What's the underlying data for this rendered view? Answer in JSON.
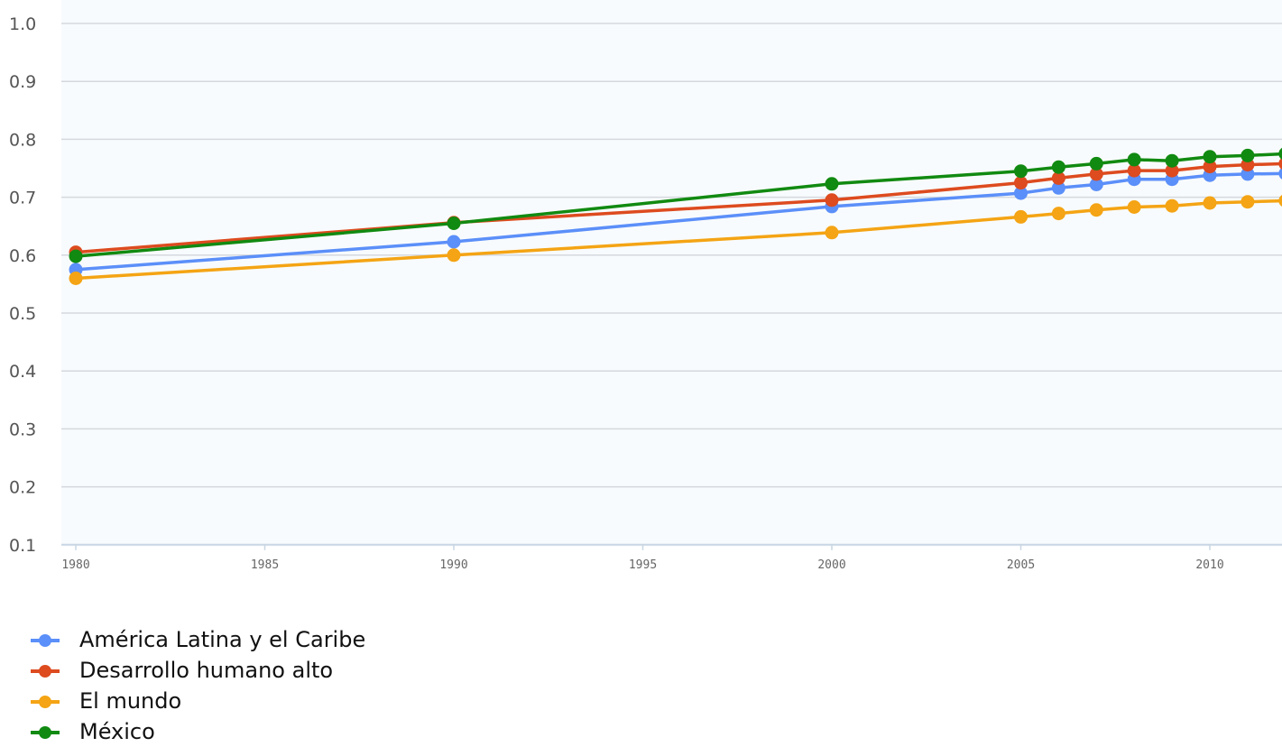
{
  "chart_data": {
    "type": "line",
    "x": [
      1980,
      1990,
      2000,
      2005,
      2006,
      2007,
      2008,
      2009,
      2010,
      2011,
      2012
    ],
    "x_ticks": [
      "1980",
      "1985",
      "1990",
      "1995",
      "2000",
      "2005",
      "2010"
    ],
    "y_ticks": [
      "1.0",
      "0.9",
      "0.8",
      "0.7",
      "0.6",
      "0.5",
      "0.4",
      "0.3",
      "0.2",
      "0.1"
    ],
    "xlim": [
      1980,
      2012
    ],
    "ylim": [
      0.1,
      1.0
    ],
    "grid": true,
    "legend_position": "bottom-left",
    "title": "",
    "xlabel": "",
    "ylabel": "",
    "series": [
      {
        "name": "América Latina y el Caribe",
        "color": "#5b8ff9",
        "values": [
          0.575,
          0.623,
          0.684,
          0.707,
          0.716,
          0.722,
          0.731,
          0.731,
          0.738,
          0.74,
          0.741
        ]
      },
      {
        "name": "Desarrollo humano alto",
        "color": "#dd4b1f",
        "values": [
          0.605,
          0.656,
          0.695,
          0.725,
          0.733,
          0.74,
          0.746,
          0.746,
          0.753,
          0.756,
          0.758
        ]
      },
      {
        "name": "El mundo",
        "color": "#f4a414",
        "values": [
          0.56,
          0.6,
          0.639,
          0.666,
          0.672,
          0.678,
          0.683,
          0.685,
          0.69,
          0.692,
          0.694
        ]
      },
      {
        "name": "México",
        "color": "#118a11",
        "values": [
          0.598,
          0.655,
          0.723,
          0.745,
          0.752,
          0.758,
          0.765,
          0.763,
          0.77,
          0.772,
          0.775
        ]
      }
    ]
  }
}
